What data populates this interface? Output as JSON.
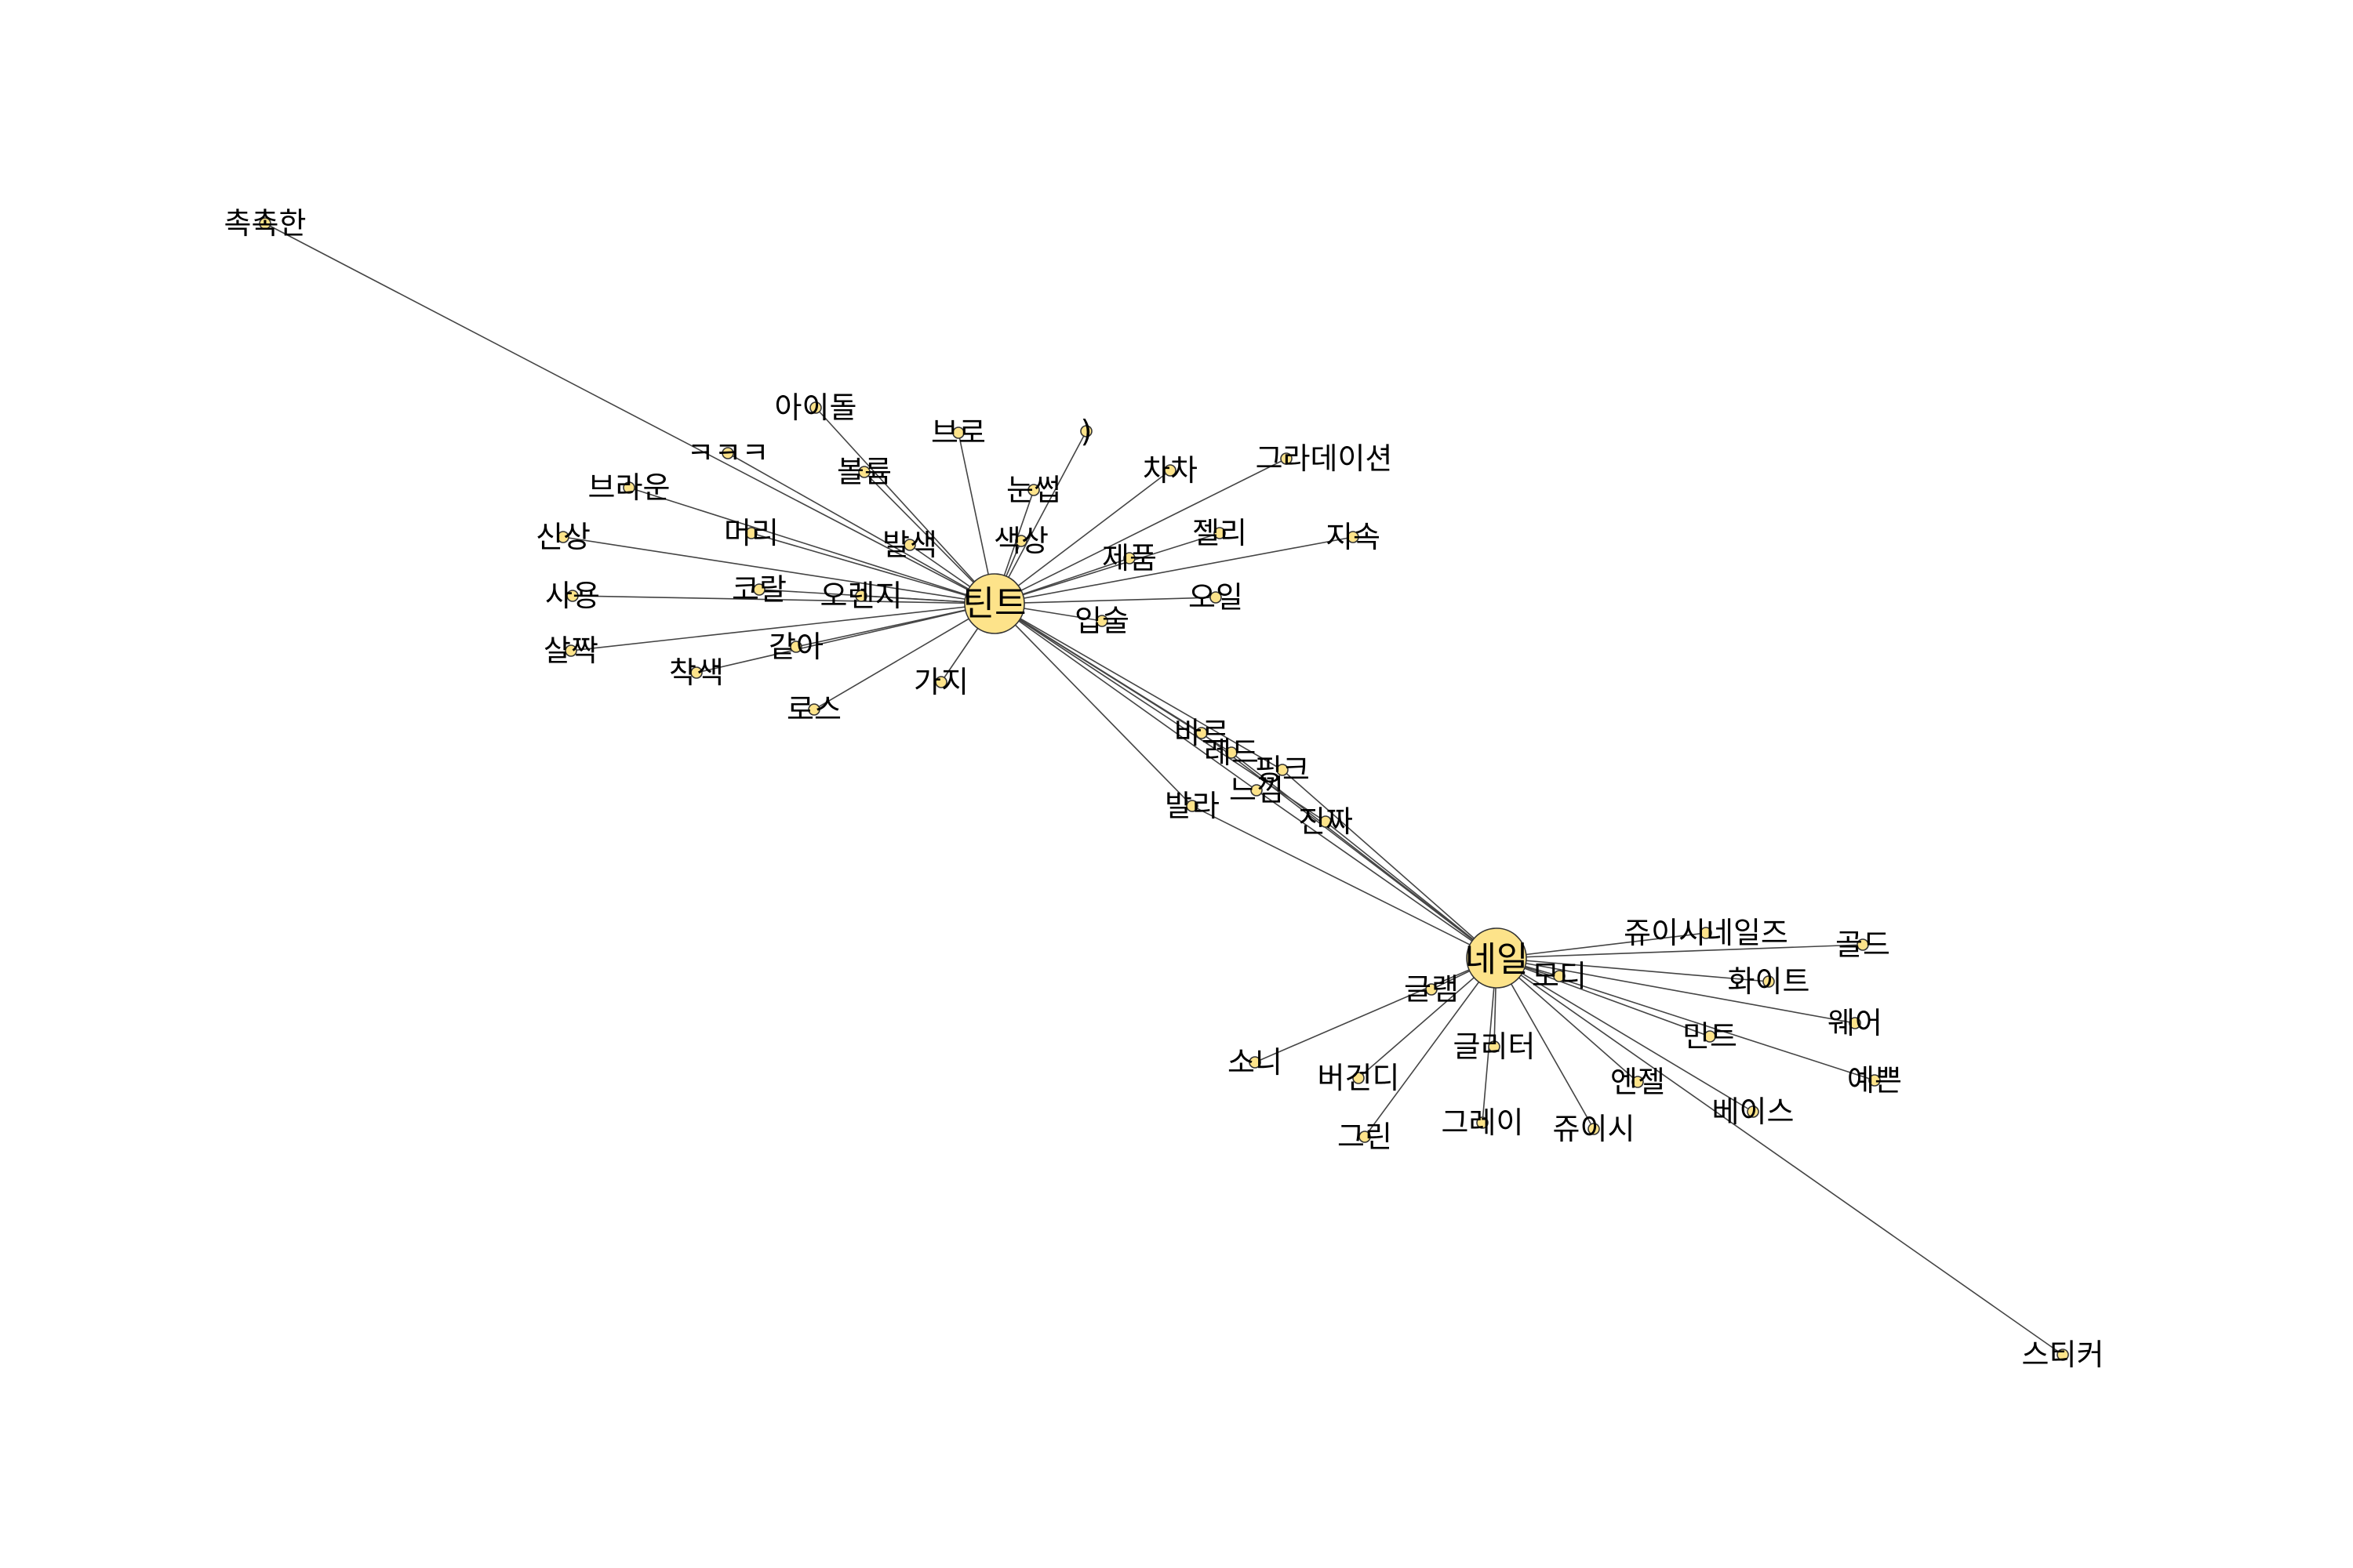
{
  "chart_data": {
    "type": "network",
    "title": "",
    "node_color": "#fde38a",
    "edge_color": "#444444",
    "hubs": [
      {
        "id": "tint",
        "label": "틴트"
      },
      {
        "id": "nail",
        "label": "네일"
      }
    ],
    "nodes": [
      {
        "id": "n01",
        "label": "촉촉한"
      },
      {
        "id": "n02",
        "label": "아이돌"
      },
      {
        "id": "n03",
        "label": "브로"
      },
      {
        "id": "n04",
        "label": ")"
      },
      {
        "id": "n05",
        "label": "ㅋㅋㅋ"
      },
      {
        "id": "n06",
        "label": "볼륨"
      },
      {
        "id": "n07",
        "label": "차차"
      },
      {
        "id": "n08",
        "label": "그라데이션"
      },
      {
        "id": "n09",
        "label": "브라운"
      },
      {
        "id": "n10",
        "label": "눈썹"
      },
      {
        "id": "n11",
        "label": "머리"
      },
      {
        "id": "n12",
        "label": "신상"
      },
      {
        "id": "n13",
        "label": "발색"
      },
      {
        "id": "n14",
        "label": "색상"
      },
      {
        "id": "n15",
        "label": "젤리"
      },
      {
        "id": "n16",
        "label": "지속"
      },
      {
        "id": "n17",
        "label": "제품"
      },
      {
        "id": "n18",
        "label": "사용"
      },
      {
        "id": "n19",
        "label": "코랄"
      },
      {
        "id": "n20",
        "label": "오렌지"
      },
      {
        "id": "n21",
        "label": "오일"
      },
      {
        "id": "n22",
        "label": "입술"
      },
      {
        "id": "n23",
        "label": "살짝"
      },
      {
        "id": "n24",
        "label": "같아"
      },
      {
        "id": "n25",
        "label": "착색"
      },
      {
        "id": "n26",
        "label": "가지"
      },
      {
        "id": "n27",
        "label": "로스"
      },
      {
        "id": "s01",
        "label": "바르"
      },
      {
        "id": "s02",
        "label": "레드"
      },
      {
        "id": "s03",
        "label": "핑크"
      },
      {
        "id": "s04",
        "label": "느낌"
      },
      {
        "id": "s05",
        "label": "발라"
      },
      {
        "id": "s06",
        "label": "진짜"
      },
      {
        "id": "m01",
        "label": "쥬이시네일즈"
      },
      {
        "id": "m02",
        "label": "골드"
      },
      {
        "id": "m03",
        "label": "모디"
      },
      {
        "id": "m04",
        "label": "화이트"
      },
      {
        "id": "m05",
        "label": "글램"
      },
      {
        "id": "m06",
        "label": "웨어"
      },
      {
        "id": "m07",
        "label": "글리터"
      },
      {
        "id": "m08",
        "label": "민트"
      },
      {
        "id": "m09",
        "label": "소니"
      },
      {
        "id": "m10",
        "label": "버건디"
      },
      {
        "id": "m11",
        "label": "엔젤"
      },
      {
        "id": "m12",
        "label": "예쁜"
      },
      {
        "id": "m13",
        "label": "베이스"
      },
      {
        "id": "m14",
        "label": "그레이"
      },
      {
        "id": "m15",
        "label": "쥬이시"
      },
      {
        "id": "m16",
        "label": "그린"
      },
      {
        "id": "m17",
        "label": "스티커"
      }
    ],
    "edges": [
      [
        "tint",
        "n01"
      ],
      [
        "tint",
        "n02"
      ],
      [
        "tint",
        "n03"
      ],
      [
        "tint",
        "n04"
      ],
      [
        "tint",
        "n05"
      ],
      [
        "tint",
        "n06"
      ],
      [
        "tint",
        "n07"
      ],
      [
        "tint",
        "n08"
      ],
      [
        "tint",
        "n09"
      ],
      [
        "tint",
        "n10"
      ],
      [
        "tint",
        "n11"
      ],
      [
        "tint",
        "n12"
      ],
      [
        "tint",
        "n13"
      ],
      [
        "tint",
        "n14"
      ],
      [
        "tint",
        "n15"
      ],
      [
        "tint",
        "n16"
      ],
      [
        "tint",
        "n17"
      ],
      [
        "tint",
        "n18"
      ],
      [
        "tint",
        "n19"
      ],
      [
        "tint",
        "n20"
      ],
      [
        "tint",
        "n21"
      ],
      [
        "tint",
        "n22"
      ],
      [
        "tint",
        "n23"
      ],
      [
        "tint",
        "n24"
      ],
      [
        "tint",
        "n25"
      ],
      [
        "tint",
        "n26"
      ],
      [
        "tint",
        "n27"
      ],
      [
        "tint",
        "s01"
      ],
      [
        "tint",
        "s02"
      ],
      [
        "tint",
        "s03"
      ],
      [
        "tint",
        "s04"
      ],
      [
        "tint",
        "s05"
      ],
      [
        "tint",
        "s06"
      ],
      [
        "nail",
        "s01"
      ],
      [
        "nail",
        "s02"
      ],
      [
        "nail",
        "s03"
      ],
      [
        "nail",
        "s04"
      ],
      [
        "nail",
        "s05"
      ],
      [
        "nail",
        "s06"
      ],
      [
        "nail",
        "m01"
      ],
      [
        "nail",
        "m02"
      ],
      [
        "nail",
        "m03"
      ],
      [
        "nail",
        "m04"
      ],
      [
        "nail",
        "m05"
      ],
      [
        "nail",
        "m06"
      ],
      [
        "nail",
        "m07"
      ],
      [
        "nail",
        "m08"
      ],
      [
        "nail",
        "m09"
      ],
      [
        "nail",
        "m10"
      ],
      [
        "nail",
        "m11"
      ],
      [
        "nail",
        "m12"
      ],
      [
        "nail",
        "m13"
      ],
      [
        "nail",
        "m14"
      ],
      [
        "nail",
        "m15"
      ],
      [
        "nail",
        "m16"
      ],
      [
        "nail",
        "m17"
      ]
    ]
  }
}
